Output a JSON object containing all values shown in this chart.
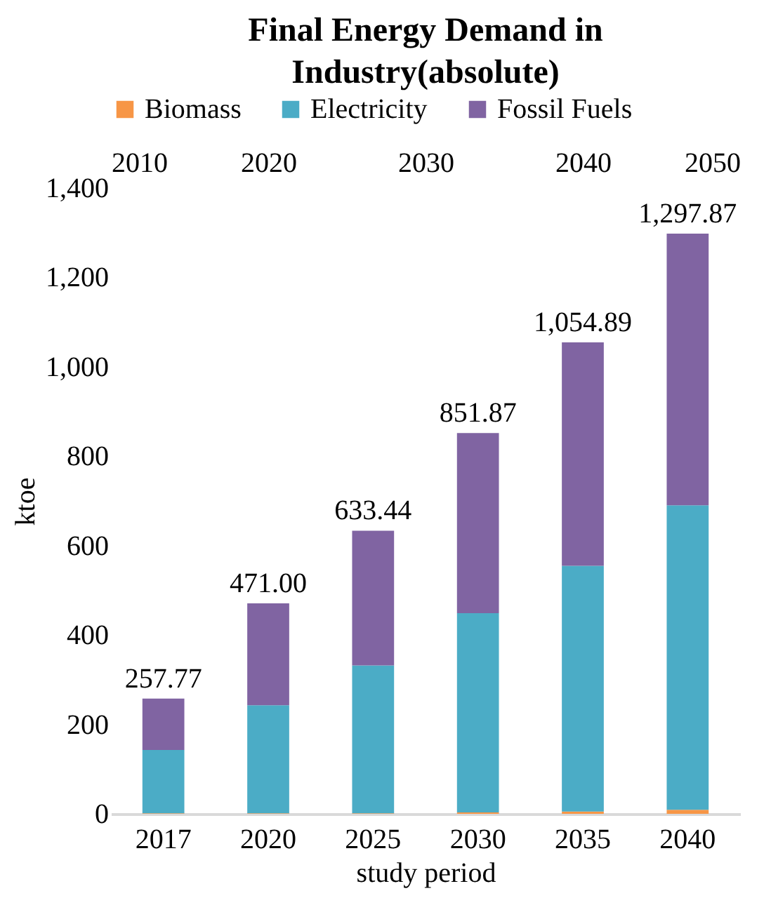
{
  "chart_data": {
    "type": "bar",
    "stacked": true,
    "title": "Final Energy Demand in Industry(absolute)",
    "xlabel": "study period",
    "ylabel": "ktoe",
    "categories": [
      "2017",
      "2020",
      "2025",
      "2030",
      "2035",
      "2040"
    ],
    "series": [
      {
        "name": "Biomass",
        "color": "#f79646",
        "values": [
          1,
          1,
          1,
          3,
          5,
          9
        ]
      },
      {
        "name": "Electricity",
        "color": "#4bacc6",
        "values": [
          142,
          242,
          331,
          446,
          550,
          681
        ]
      },
      {
        "name": "Fossil Fuels",
        "color": "#8064a2",
        "values": [
          114.77,
          228.0,
          301.44,
          402.87,
          499.89,
          607.87
        ]
      }
    ],
    "totals": [
      "257.77",
      "471.00",
      "633.44",
      "851.87",
      "1,054.89",
      "1,297.87"
    ],
    "ylim": [
      0,
      1400
    ],
    "yticks": [
      0,
      {
        "value": 200,
        "label": "200"
      },
      {
        "value": 400,
        "label": "400"
      },
      {
        "value": 600,
        "label": "600"
      },
      {
        "value": 800,
        "label": "800"
      },
      {
        "value": 1000,
        "label": "1,000"
      },
      {
        "value": 1200,
        "label": "1,200"
      },
      {
        "value": 1400,
        "label": "1,400"
      }
    ],
    "x2lim": [
      2010,
      2050
    ],
    "x2ticks": [
      2010,
      2020,
      2030,
      2040,
      2050
    ],
    "legend": "top",
    "grid": false
  }
}
